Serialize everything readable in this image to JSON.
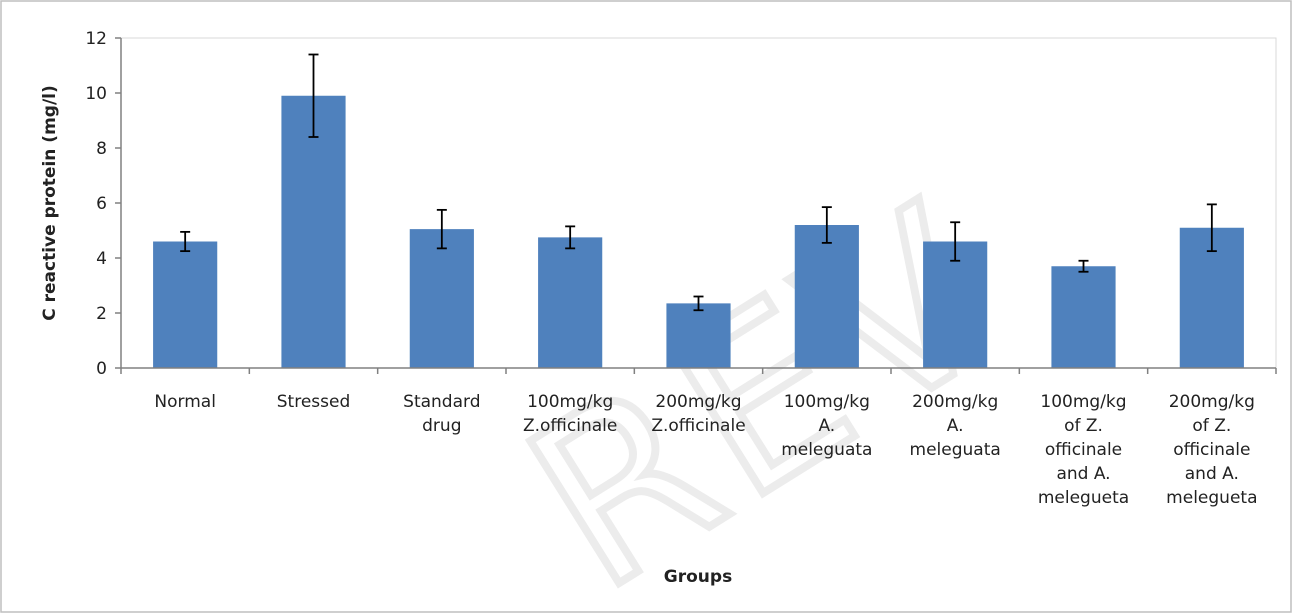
{
  "chart_data": {
    "type": "bar",
    "xlabel": "Groups",
    "ylabel": "C reactive protein (mg/l)",
    "ylim": [
      0,
      12
    ],
    "yticks": [
      0,
      2,
      4,
      6,
      8,
      10,
      12
    ],
    "grid": false,
    "legend": "none",
    "bar_color": "#4f81bd",
    "categories": [
      [
        "Normal"
      ],
      [
        "Stressed"
      ],
      [
        "Standard",
        "drug"
      ],
      [
        "100mg/kg",
        "Z.officinale"
      ],
      [
        "200mg/kg",
        "Z.officinale"
      ],
      [
        "100mg/kg",
        "A.",
        "meleguata"
      ],
      [
        "200mg/kg",
        "A.",
        "meleguata"
      ],
      [
        "100mg/kg",
        "of Z.",
        "officinale",
        "and A.",
        "melegueta"
      ],
      [
        "200mg/kg",
        "of Z.",
        "officinale",
        "and A.",
        "melegueta"
      ]
    ],
    "values": [
      4.6,
      9.9,
      5.05,
      4.75,
      2.35,
      5.2,
      4.6,
      3.7,
      5.1
    ],
    "errors": [
      0.35,
      1.5,
      0.7,
      0.4,
      0.25,
      0.65,
      0.7,
      0.2,
      0.85
    ]
  }
}
